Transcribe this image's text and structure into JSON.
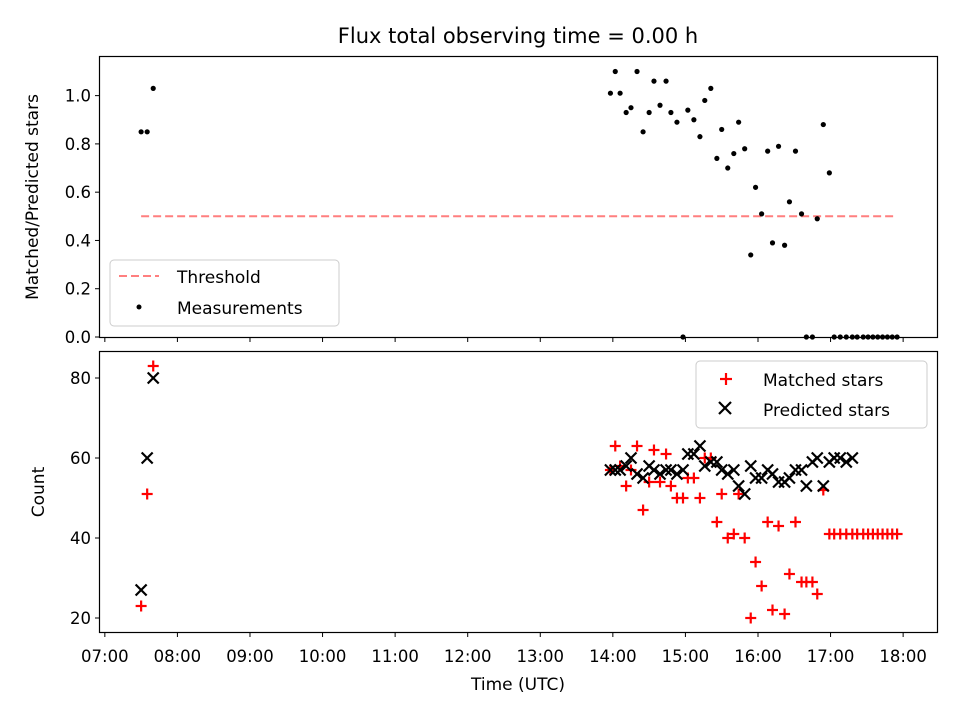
{
  "title": "Flux total observing time = 0.00 h",
  "colors": {
    "threshold": "#ff7f7f",
    "measurements": "#000000",
    "matched": "#ff0000",
    "predicted": "#000000"
  },
  "chart_data": [
    {
      "type": "scatter",
      "ylabel": "Matched/Predicted stars",
      "xlim": [
        "06:56",
        "18:28"
      ],
      "ylim": [
        0,
        1.16
      ],
      "yticks": [
        "0.0",
        "0.2",
        "0.4",
        "0.6",
        "0.8",
        "1.0"
      ],
      "ytick_values": [
        0,
        0.2,
        0.4,
        0.6,
        0.8,
        1.0
      ],
      "legend_position": "lower-left",
      "threshold": {
        "label": "Threshold",
        "value": 0.5,
        "x_start": "07:30",
        "x_end": "17:55"
      },
      "series": [
        {
          "name": "Measurements",
          "x": [
            "07:30",
            "07:35",
            "07:40",
            "13:58",
            "14:02",
            "14:06",
            "14:11",
            "14:15",
            "14:20",
            "14:25",
            "14:30",
            "14:34",
            "14:39",
            "14:44",
            "14:48",
            "14:53",
            "14:58",
            "15:02",
            "15:07",
            "15:12",
            "15:16",
            "15:21",
            "15:26",
            "15:30",
            "15:35",
            "15:40",
            "15:44",
            "15:49",
            "15:54",
            "15:58",
            "16:03",
            "16:08",
            "16:12",
            "16:17",
            "16:22",
            "16:26",
            "16:31",
            "16:36",
            "16:40",
            "16:45",
            "16:49",
            "16:54",
            "16:59",
            "17:03",
            "17:08",
            "17:13",
            "17:18",
            "17:22",
            "17:27",
            "17:31",
            "17:35",
            "17:39",
            "17:43",
            "17:47",
            "17:51",
            "17:55"
          ],
          "y": [
            0.85,
            0.85,
            1.03,
            1.01,
            1.1,
            1.01,
            0.93,
            0.95,
            1.1,
            0.85,
            0.93,
            1.06,
            0.96,
            1.06,
            0.93,
            0.89,
            0.0,
            0.94,
            0.9,
            0.83,
            0.98,
            1.03,
            0.74,
            0.86,
            0.7,
            0.76,
            0.89,
            0.78,
            0.34,
            0.62,
            0.51,
            0.77,
            0.39,
            0.79,
            0.38,
            0.56,
            0.77,
            0.51,
            0.0,
            0.0,
            0.49,
            0.88,
            0.68,
            0.0,
            0.0,
            0.0,
            0.0,
            0.0,
            0.0,
            0.0,
            0.0,
            0.0,
            0.0,
            0.0,
            0.0,
            0.0
          ]
        }
      ]
    },
    {
      "type": "scatter",
      "xlabel": "Time (UTC)",
      "ylabel": "Count",
      "xlim": [
        "06:56",
        "18:28"
      ],
      "ylim": [
        16.5,
        86.5
      ],
      "xticks": [
        "07:00",
        "08:00",
        "09:00",
        "10:00",
        "11:00",
        "12:00",
        "13:00",
        "14:00",
        "15:00",
        "16:00",
        "17:00",
        "18:00"
      ],
      "yticks": [
        "20",
        "40",
        "60",
        "80"
      ],
      "ytick_values": [
        20,
        40,
        60,
        80
      ],
      "legend_position": "upper-right",
      "series": [
        {
          "name": "Matched stars",
          "marker": "plus",
          "x": [
            "07:30",
            "07:35",
            "07:40",
            "13:58",
            "14:02",
            "14:06",
            "14:11",
            "14:15",
            "14:20",
            "14:25",
            "14:30",
            "14:34",
            "14:39",
            "14:44",
            "14:48",
            "14:53",
            "14:58",
            "15:02",
            "15:07",
            "15:12",
            "15:16",
            "15:21",
            "15:26",
            "15:30",
            "15:35",
            "15:40",
            "15:44",
            "15:49",
            "15:54",
            "15:58",
            "16:03",
            "16:08",
            "16:12",
            "16:17",
            "16:22",
            "16:26",
            "16:31",
            "16:36",
            "16:40",
            "16:45",
            "16:49",
            "16:54",
            "16:59",
            "17:03",
            "17:08",
            "17:13",
            "17:18",
            "17:22",
            "17:27",
            "17:31",
            "17:35",
            "17:39",
            "17:43",
            "17:47",
            "17:51",
            "17:55"
          ],
          "y": [
            23,
            51,
            83,
            57,
            63,
            58,
            53,
            57,
            63,
            47,
            54,
            62,
            54,
            61,
            53,
            50,
            50,
            55,
            55,
            50,
            60,
            60,
            44,
            51,
            40,
            41,
            51,
            40,
            20,
            34,
            28,
            44,
            22,
            43,
            21,
            31,
            44,
            29,
            29,
            29,
            26,
            52,
            41,
            41,
            41,
            41,
            41,
            41,
            41,
            41,
            41,
            41,
            41,
            41,
            41,
            41
          ]
        },
        {
          "name": "Predicted stars",
          "marker": "x",
          "x": [
            "07:30",
            "07:35",
            "07:40",
            "13:58",
            "14:02",
            "14:06",
            "14:11",
            "14:15",
            "14:20",
            "14:25",
            "14:30",
            "14:34",
            "14:39",
            "14:44",
            "14:48",
            "14:53",
            "14:58",
            "15:02",
            "15:07",
            "15:12",
            "15:16",
            "15:21",
            "15:26",
            "15:30",
            "15:35",
            "15:40",
            "15:44",
            "15:49",
            "15:54",
            "15:58",
            "16:03",
            "16:08",
            "16:12",
            "16:17",
            "16:22",
            "16:26",
            "16:31",
            "16:36",
            "16:40",
            "16:45",
            "16:49",
            "16:54",
            "16:59",
            "17:03",
            "17:08",
            "17:13",
            "17:18"
          ],
          "y": [
            27,
            60,
            80,
            57,
            57,
            57,
            58,
            60,
            56,
            55,
            58,
            57,
            56,
            57,
            57,
            56,
            57,
            61,
            61,
            63,
            58,
            59,
            59,
            57,
            56,
            57,
            53,
            51,
            58,
            55,
            55,
            57,
            56,
            54,
            54,
            55,
            57,
            57,
            53,
            59,
            60,
            53,
            59,
            60,
            60,
            59,
            60
          ]
        }
      ]
    }
  ]
}
